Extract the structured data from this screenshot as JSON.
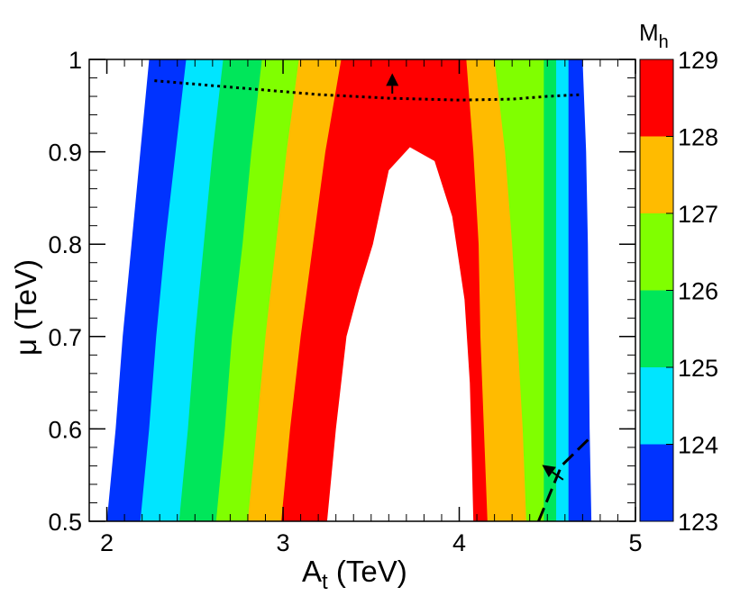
{
  "chart_data": {
    "type": "contour",
    "xlabel": "A",
    "xlabel_sub": "t",
    "xlabel_unit": " (TeV)",
    "ylabel": "μ (TeV)",
    "xlim": [
      1.9,
      5.0
    ],
    "ylim": [
      0.5,
      1.0
    ],
    "x_ticks": [
      2,
      3,
      4,
      5
    ],
    "y_ticks": [
      0.5,
      0.6,
      0.7,
      0.8,
      0.9,
      1
    ],
    "x_tick_labels": [
      "2",
      "3",
      "4",
      "5"
    ],
    "y_tick_labels": [
      "0.5",
      "0.6",
      "0.7",
      "0.8",
      "0.9",
      "1"
    ],
    "colorbar": {
      "title": "M",
      "title_sub": "h",
      "levels": [
        123,
        124,
        125,
        126,
        127,
        128,
        129
      ],
      "labels": [
        "123",
        "124",
        "125",
        "126",
        "127",
        "128",
        "129"
      ],
      "colors": [
        "#0033ff",
        "#00e5ff",
        "#00e65a",
        "#80ff00",
        "#ffbb00",
        "#ff0000"
      ]
    },
    "bands": [
      {
        "name": "M_h 123-124",
        "left": [
          [
            2.0,
            0.5
          ],
          [
            2.05,
            0.6
          ],
          [
            2.09,
            0.7
          ],
          [
            2.14,
            0.8
          ],
          [
            2.19,
            0.9
          ],
          [
            2.24,
            1.0
          ]
        ],
        "right": [
          [
            4.75,
            0.5
          ],
          [
            4.74,
            0.6
          ],
          [
            4.735,
            0.7
          ],
          [
            4.73,
            0.8
          ],
          [
            4.72,
            0.9
          ],
          [
            4.7,
            1.0
          ]
        ]
      },
      {
        "name": "M_h 124-125",
        "left": [
          [
            2.19,
            0.5
          ],
          [
            2.24,
            0.6
          ],
          [
            2.28,
            0.7
          ],
          [
            2.33,
            0.8
          ],
          [
            2.39,
            0.9
          ],
          [
            2.45,
            1.0
          ]
        ],
        "right": [
          [
            4.62,
            0.5
          ],
          [
            4.62,
            0.6
          ],
          [
            4.62,
            0.7
          ],
          [
            4.62,
            0.8
          ],
          [
            4.62,
            0.9
          ],
          [
            4.62,
            1.0
          ]
        ]
      },
      {
        "name": "M_h 125-126",
        "left": [
          [
            2.41,
            0.5
          ],
          [
            2.46,
            0.6
          ],
          [
            2.5,
            0.7
          ],
          [
            2.55,
            0.8
          ],
          [
            2.6,
            0.9
          ],
          [
            2.66,
            1.0
          ]
        ],
        "right": [
          [
            4.55,
            0.5
          ],
          [
            4.55,
            0.6
          ],
          [
            4.55,
            0.7
          ],
          [
            4.55,
            0.8
          ],
          [
            4.55,
            0.9
          ],
          [
            4.55,
            1.0
          ]
        ]
      },
      {
        "name": "M_h 126-127",
        "left": [
          [
            2.62,
            0.5
          ],
          [
            2.67,
            0.6
          ],
          [
            2.71,
            0.7
          ],
          [
            2.77,
            0.8
          ],
          [
            2.82,
            0.9
          ],
          [
            2.88,
            1.0
          ]
        ],
        "right": [
          [
            4.48,
            0.5
          ],
          [
            4.48,
            0.6
          ],
          [
            4.48,
            0.7
          ],
          [
            4.48,
            0.8
          ],
          [
            4.48,
            0.9
          ],
          [
            4.48,
            1.0
          ]
        ]
      },
      {
        "name": "M_h 127-128",
        "left": [
          [
            2.8,
            0.5
          ],
          [
            2.85,
            0.6
          ],
          [
            2.9,
            0.7
          ],
          [
            2.96,
            0.8
          ],
          [
            3.02,
            0.9
          ],
          [
            3.09,
            1.0
          ]
        ],
        "right": [
          [
            4.38,
            0.5
          ],
          [
            4.36,
            0.6
          ],
          [
            4.33,
            0.7
          ],
          [
            4.3,
            0.8
          ],
          [
            4.26,
            0.9
          ],
          [
            4.2,
            1.0
          ]
        ]
      },
      {
        "name": "M_h 128-129",
        "left": [
          [
            2.99,
            0.5
          ],
          [
            3.04,
            0.6
          ],
          [
            3.1,
            0.7
          ],
          [
            3.17,
            0.8
          ],
          [
            3.24,
            0.9
          ],
          [
            3.33,
            1.0
          ]
        ],
        "right": [
          [
            4.16,
            0.5
          ],
          [
            4.14,
            0.6
          ],
          [
            4.12,
            0.7
          ],
          [
            4.11,
            0.8
          ],
          [
            4.08,
            0.9
          ],
          [
            4.04,
            1.0
          ]
        ]
      }
    ],
    "hole_boundary": [
      [
        3.25,
        0.5
      ],
      [
        3.3,
        0.6
      ],
      [
        3.36,
        0.7
      ],
      [
        3.43,
        0.75
      ],
      [
        3.51,
        0.8
      ],
      [
        3.6,
        0.88
      ],
      [
        3.72,
        0.905
      ],
      [
        3.86,
        0.89
      ],
      [
        3.96,
        0.83
      ],
      [
        4.03,
        0.74
      ],
      [
        4.06,
        0.65
      ],
      [
        4.07,
        0.58
      ],
      [
        4.08,
        0.5
      ]
    ],
    "dotted_constraint": [
      [
        2.27,
        0.977
      ],
      [
        2.7,
        0.97
      ],
      [
        3.2,
        0.962
      ],
      [
        3.6,
        0.958
      ],
      [
        4.0,
        0.956
      ],
      [
        4.3,
        0.957
      ],
      [
        4.5,
        0.96
      ],
      [
        4.7,
        0.962
      ]
    ],
    "dotted_arrow": {
      "from": [
        3.62,
        0.963
      ],
      "to": [
        3.62,
        0.985
      ]
    },
    "dashed_constraint": [
      [
        4.45,
        0.5
      ],
      [
        4.58,
        0.56
      ],
      [
        4.74,
        0.59
      ]
    ],
    "dashed_arrow": {
      "from": [
        4.59,
        0.545
      ],
      "to": [
        4.47,
        0.561
      ]
    }
  }
}
